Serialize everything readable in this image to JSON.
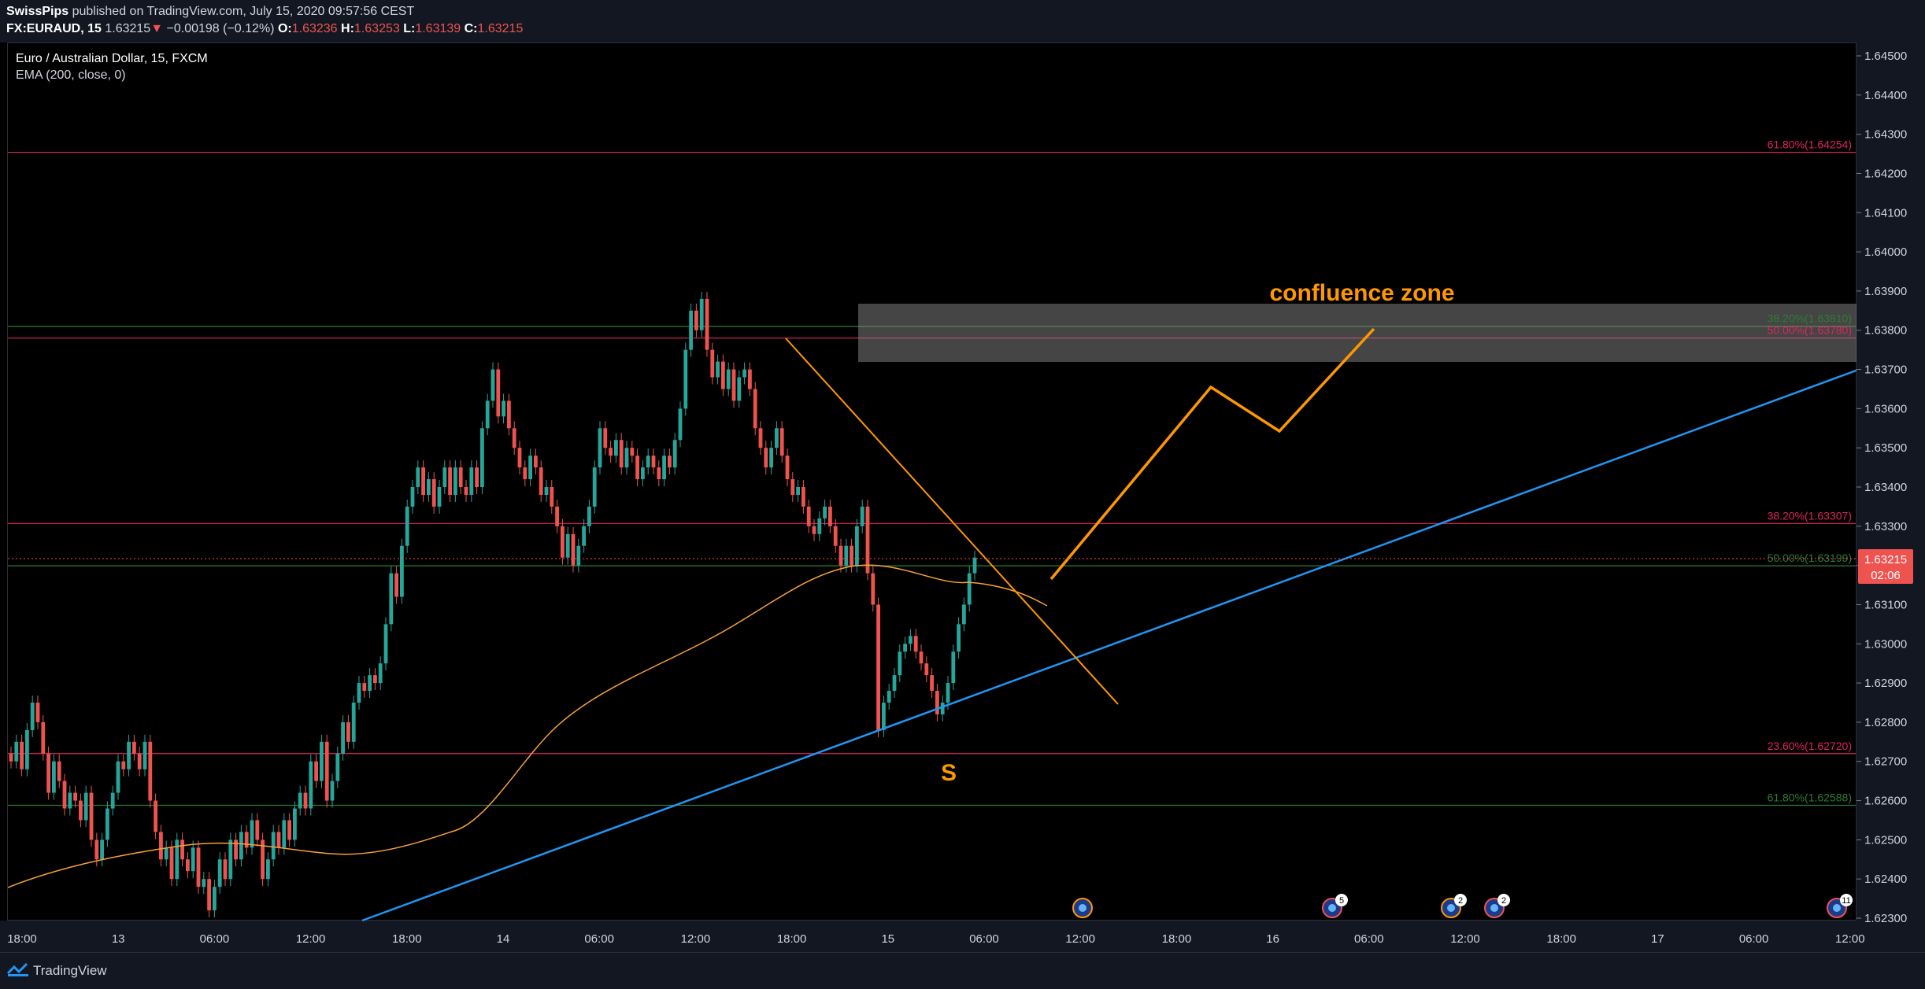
{
  "header": {
    "author": "SwissPips",
    "published": " published on TradingView.com, July 15, 2020 09:57:56 CEST",
    "symbol": "FX:EURAUD, 15",
    "last": "1.63215",
    "change": "−0.00198 (−0.12%)",
    "open_label": "O:",
    "open": "1.63236",
    "high_label": "H:",
    "high": "1.63253",
    "low_label": "L:",
    "low": "1.63139",
    "close_label": "C:",
    "close": "1.63215"
  },
  "legend": {
    "title": "Euro / Australian Dollar, 15, FXCM",
    "indicator": "EMA (200, close, 0)"
  },
  "colors": {
    "up": "#26a69a",
    "down": "#ef5350",
    "ema": "#f7a13b",
    "trend": "#2196f3",
    "drawing": "#ff9800",
    "fib_red": "#e0245e",
    "fib_green": "#2e7d32"
  },
  "price_axis": {
    "ticks": [
      "1.64500",
      "1.64400",
      "1.64300",
      "1.64200",
      "1.64100",
      "1.64000",
      "1.63900",
      "1.63800",
      "1.63700",
      "1.63600",
      "1.63500",
      "1.63400",
      "1.63300",
      "1.63200",
      "1.63100",
      "1.63000",
      "1.62900",
      "1.62800",
      "1.62700",
      "1.62600",
      "1.62500",
      "1.62400",
      "1.62300"
    ],
    "current_price": "1.63215",
    "countdown": "02:06"
  },
  "time_axis": {
    "labels": [
      "18:00",
      "13",
      "06:00",
      "12:00",
      "18:00",
      "14",
      "06:00",
      "12:00",
      "18:00",
      "15",
      "06:00",
      "12:00",
      "18:00",
      "16",
      "06:00",
      "12:00",
      "18:00",
      "17",
      "06:00",
      "12:00"
    ]
  },
  "annotations": {
    "zone_label": "confluence zone",
    "support_label": "S"
  },
  "fib_levels": [
    {
      "label": "61.80%(1.64254)",
      "color": "red"
    },
    {
      "label": "38.20%(1.63810)",
      "color": "green"
    },
    {
      "label": "50.00%(1.63780)",
      "color": "red"
    },
    {
      "label": "38.20%(1.63307)",
      "color": "red"
    },
    {
      "label": "50.00%(1.63199)",
      "color": "green"
    },
    {
      "label": "23.60%(1.62720)",
      "color": "red"
    },
    {
      "label": "61.80%(1.62588)",
      "color": "green"
    }
  ],
  "events": [
    {
      "badge": ""
    },
    {
      "badge": "5"
    },
    {
      "badge": "2"
    },
    {
      "badge": "2"
    },
    {
      "badge": "11"
    }
  ],
  "chart_data": {
    "type": "candlestick",
    "symbol": "FX:EURAUD",
    "interval": "15",
    "ylim": [
      1.623,
      1.645
    ],
    "closes": [
      1.627,
      1.6275,
      1.6268,
      1.6278,
      1.6285,
      1.628,
      1.6272,
      1.6262,
      1.627,
      1.6265,
      1.6258,
      1.6262,
      1.626,
      1.6255,
      1.6262,
      1.625,
      1.6245,
      1.625,
      1.6258,
      1.6262,
      1.627,
      1.6268,
      1.6275,
      1.6272,
      1.6268,
      1.6275,
      1.626,
      1.6252,
      1.6245,
      1.6248,
      1.624,
      1.625,
      1.6245,
      1.6242,
      1.6248,
      1.6238,
      1.624,
      1.6232,
      1.6238,
      1.6245,
      1.624,
      1.625,
      1.6245,
      1.6252,
      1.6248,
      1.6255,
      1.625,
      1.624,
      1.6245,
      1.6252,
      1.6248,
      1.6255,
      1.625,
      1.6258,
      1.6262,
      1.6258,
      1.627,
      1.6265,
      1.6275,
      1.626,
      1.6265,
      1.6272,
      1.628,
      1.6275,
      1.6285,
      1.629,
      1.6288,
      1.6292,
      1.629,
      1.6295,
      1.6305,
      1.6318,
      1.6312,
      1.6325,
      1.6335,
      1.634,
      1.6345,
      1.6338,
      1.6342,
      1.6335,
      1.634,
      1.6345,
      1.6338,
      1.6345,
      1.634,
      1.6338,
      1.6345,
      1.634,
      1.6355,
      1.6362,
      1.637,
      1.6358,
      1.6362,
      1.6355,
      1.635,
      1.6345,
      1.6342,
      1.6348,
      1.6345,
      1.6338,
      1.634,
      1.6335,
      1.633,
      1.6322,
      1.6328,
      1.632,
      1.6325,
      1.633,
      1.6335,
      1.6345,
      1.6355,
      1.635,
      1.6348,
      1.6352,
      1.6345,
      1.635,
      1.6348,
      1.6342,
      1.6345,
      1.6348,
      1.6345,
      1.6342,
      1.6348,
      1.6345,
      1.6352,
      1.636,
      1.6375,
      1.6385,
      1.638,
      1.6388,
      1.6375,
      1.6368,
      1.6372,
      1.6365,
      1.637,
      1.6362,
      1.6368,
      1.637,
      1.6365,
      1.6355,
      1.635,
      1.6345,
      1.635,
      1.6355,
      1.6348,
      1.6342,
      1.6338,
      1.634,
      1.6335,
      1.633,
      1.6328,
      1.6332,
      1.6335,
      1.633,
      1.6325,
      1.632,
      1.6325,
      1.632,
      1.633,
      1.6335,
      1.6318,
      1.631,
      1.6278,
      1.6285,
      1.6288,
      1.6292,
      1.6298,
      1.63,
      1.6302,
      1.6298,
      1.6295,
      1.6292,
      1.6288,
      1.6282,
      1.6285,
      1.629,
      1.6298,
      1.6305,
      1.631,
      1.6318,
      1.6322
    ]
  }
}
